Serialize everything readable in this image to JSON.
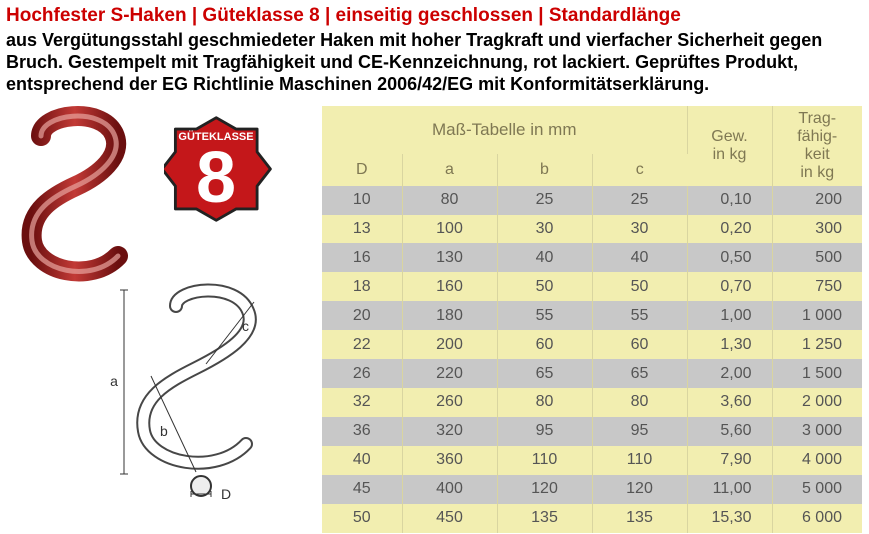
{
  "title": "Hochfester S-Haken | Güteklasse 8 | einseitig geschlossen | Standardlänge",
  "description": "aus Vergütungsstahl geschmiedeter Haken mit hoher Tragkraft und vierfacher Sicherheit gegen Bruch. Gestempelt mit Tragfähigkeit und CE-Kennzeichnung, rot lackiert. Geprüftes Produkt, entsprechend der EG Richtlinie Maschinen 2006/42/EG mit Konformitätserklärung.",
  "badge": {
    "top_text": "GÜTEKLASSE",
    "number": "8"
  },
  "colors": {
    "title": "#cc0000",
    "text": "#000000",
    "header_bg": "#f2eeb0",
    "header_text": "#7f7853",
    "row_odd": "#c8c8c8",
    "row_even": "#f2eeb0",
    "cell_text": "#555555",
    "border": "#d9d5a0",
    "hook_fill": "#9a1a1a",
    "hook_highlight": "#e0857d",
    "badge_fill": "#c4171a",
    "badge_stroke": "#222222"
  },
  "table": {
    "group_header": "Maß-Tabelle in mm",
    "col_gew": [
      "Gew.",
      "in kg"
    ],
    "col_trag": [
      "Trag-",
      "fähig-",
      "keit",
      "in kg"
    ],
    "subcols": [
      "D",
      "a",
      "b",
      "c"
    ],
    "rows": [
      {
        "D": "10",
        "a": "80",
        "b": "25",
        "c": "25",
        "gew": "0,10",
        "trag": "200"
      },
      {
        "D": "13",
        "a": "100",
        "b": "30",
        "c": "30",
        "gew": "0,20",
        "trag": "300"
      },
      {
        "D": "16",
        "a": "130",
        "b": "40",
        "c": "40",
        "gew": "0,50",
        "trag": "500"
      },
      {
        "D": "18",
        "a": "160",
        "b": "50",
        "c": "50",
        "gew": "0,70",
        "trag": "750"
      },
      {
        "D": "20",
        "a": "180",
        "b": "55",
        "c": "55",
        "gew": "1,00",
        "trag": "1 000"
      },
      {
        "D": "22",
        "a": "200",
        "b": "60",
        "c": "60",
        "gew": "1,30",
        "trag": "1 250"
      },
      {
        "D": "26",
        "a": "220",
        "b": "65",
        "c": "65",
        "gew": "2,00",
        "trag": "1 500"
      },
      {
        "D": "32",
        "a": "260",
        "b": "80",
        "c": "80",
        "gew": "3,60",
        "trag": "2 000"
      },
      {
        "D": "36",
        "a": "320",
        "b": "95",
        "c": "95",
        "gew": "5,60",
        "trag": "3 000"
      },
      {
        "D": "40",
        "a": "360",
        "b": "110",
        "c": "110",
        "gew": "7,90",
        "trag": "4 000"
      },
      {
        "D": "45",
        "a": "400",
        "b": "120",
        "c": "120",
        "gew": "11,00",
        "trag": "5 000"
      },
      {
        "D": "50",
        "a": "450",
        "b": "135",
        "c": "135",
        "gew": "15,30",
        "trag": "6 000"
      }
    ]
  },
  "dim_labels": {
    "a": "a",
    "b": "b",
    "c": "c",
    "D": "D"
  }
}
